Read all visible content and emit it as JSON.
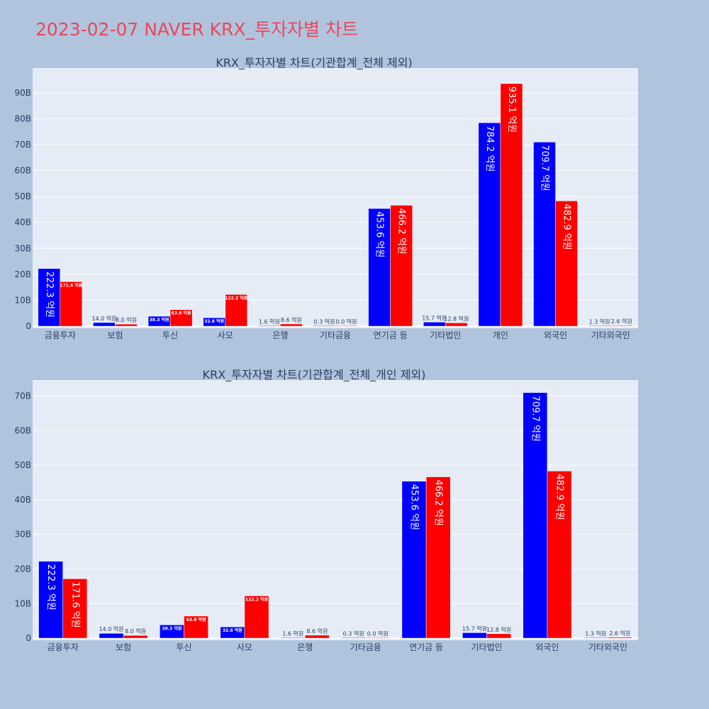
{
  "page": {
    "title": "2023-02-07 NAVER KRX_투자자별 차트",
    "colors": {
      "buy": "#0000ff",
      "sell": "#ff0000",
      "plot_bg": "#e5ecf6",
      "page_bg": "#b0c4de",
      "title": "#e8485a"
    }
  },
  "chart_data": [
    {
      "type": "bar",
      "title": "KRX_투자자별 차트(기관합계_전체 제외)",
      "categories": [
        "금융투자",
        "보험",
        "투신",
        "사모",
        "은행",
        "기타금융",
        "연기금 등",
        "기타법인",
        "개인",
        "외국인",
        "기타외국인"
      ],
      "series": [
        {
          "name": "blue",
          "color": "#0000ff",
          "values": [
            22.23,
            1.4,
            3.83,
            3.26,
            0.16,
            0.03,
            45.36,
            1.57,
            78.42,
            70.97,
            0.13
          ],
          "labels": [
            "222.3 억원",
            "14.0 억원",
            "38.3 억원",
            "32.6 억원",
            "1.6 억원",
            "0.3 억원",
            "453.6 억원",
            "15.7 억원",
            "784.2 억원",
            "709.7 억원",
            "1.3 억원"
          ]
        },
        {
          "name": "red",
          "color": "#ff0000",
          "values": [
            17.16,
            0.8,
            6.38,
            12.22,
            0.86,
            0.0,
            46.62,
            1.28,
            93.51,
            48.29,
            0.26
          ],
          "labels": [
            "171.6 억원",
            "8.0 억원",
            "63.8 억원",
            "122.2 억원",
            "8.6 억원",
            "0.0 억원",
            "466.2 억원",
            "12.8 억원",
            "935.1 억원",
            "482.9 억원",
            "2.6 억원"
          ]
        }
      ],
      "yticks": [
        0,
        10,
        20,
        30,
        40,
        50,
        60,
        70,
        80,
        90
      ],
      "ytick_labels": [
        "0",
        "10B",
        "20B",
        "30B",
        "40B",
        "50B",
        "60B",
        "70B",
        "80B",
        "90B"
      ],
      "ylim": [
        -0.8,
        99.5
      ]
    },
    {
      "type": "bar",
      "title": "KRX_투자자별 차트(기관합계_전체_개인 제외)",
      "categories": [
        "금융투자",
        "보험",
        "투신",
        "사모",
        "은행",
        "기타금융",
        "연기금 등",
        "기타법인",
        "외국인",
        "기타외국인"
      ],
      "series": [
        {
          "name": "blue",
          "color": "#0000ff",
          "values": [
            22.23,
            1.4,
            3.83,
            3.26,
            0.16,
            0.03,
            45.36,
            1.57,
            70.97,
            0.13
          ],
          "labels": [
            "222.3 억원",
            "14.0 억원",
            "38.3 억원",
            "32.6 억원",
            "1.6 억원",
            "0.3 억원",
            "453.6 억원",
            "15.7 억원",
            "709.7 억원",
            "1.3 억원"
          ]
        },
        {
          "name": "red",
          "color": "#ff0000",
          "values": [
            17.16,
            0.8,
            6.38,
            12.22,
            0.86,
            0.0,
            46.62,
            1.28,
            48.29,
            0.26
          ],
          "labels": [
            "171.6 억원",
            "8.0 억원",
            "63.8 억원",
            "122.2 억원",
            "8.6 억원",
            "0.0 억원",
            "466.2 억원",
            "12.8 억원",
            "482.9 억원",
            "2.6 억원"
          ]
        }
      ],
      "yticks": [
        0,
        10,
        20,
        30,
        40,
        50,
        60,
        70
      ],
      "ytick_labels": [
        "0",
        "10B",
        "20B",
        "30B",
        "40B",
        "50B",
        "60B",
        "70B"
      ],
      "ylim": [
        -0.6,
        74.6
      ]
    }
  ]
}
